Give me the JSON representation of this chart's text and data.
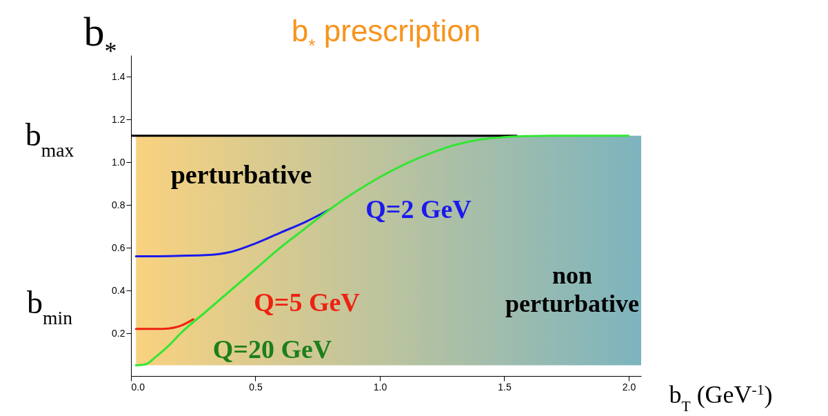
{
  "chart_data": {
    "type": "line",
    "title": "b$_{*}$ prescription",
    "xlabel": "b$_{T}$ (GeV$^{-1}$)",
    "ylabel": "b$_{*}$",
    "xlim": [
      0,
      2.05
    ],
    "ylim": [
      0,
      1.5
    ],
    "xticks": [
      {
        "value": 0,
        "label": "0.0"
      },
      0.5,
      {
        "value": 1,
        "label": "1.0"
      },
      1.5,
      {
        "value": 2,
        "label": "2.0"
      }
    ],
    "yticks": [
      0.2,
      0.4,
      0.6,
      0.8,
      {
        "value": 1,
        "label": "1.0"
      },
      1.2,
      1.4
    ],
    "grid": false,
    "legend": false,
    "bands": [
      {
        "axis": "x",
        "from": 0.02,
        "to": 2.05,
        "color": "#f9d27f"
      }
    ],
    "series": [
      {
        "color": "#000000",
        "x": [
          0,
          1.55
        ],
        "values": [
          1.123,
          1.123
        ]
      },
      {
        "color": "#1a1aee",
        "x": [
          0.02,
          0.1,
          0.2,
          0.3,
          0.4,
          0.5,
          0.6,
          0.7,
          0.8
        ],
        "values": [
          0.56,
          0.56,
          0.562,
          0.565,
          0.58,
          0.62,
          0.67,
          0.72,
          0.78
        ]
      },
      {
        "color": "#ee2211",
        "x": [
          0.02,
          0.1,
          0.15,
          0.2,
          0.25
        ],
        "values": [
          0.22,
          0.22,
          0.222,
          0.235,
          0.265
        ]
      },
      {
        "color": "#33e633",
        "x": [
          0.02,
          0.06,
          0.1,
          0.15,
          0.2,
          0.3,
          0.4,
          0.5,
          0.6,
          0.7,
          0.8,
          0.9,
          1.0,
          1.1,
          1.2,
          1.3,
          1.4,
          1.5,
          1.6,
          1.7,
          1.8,
          1.9,
          2.0
        ],
        "values": [
          0.05,
          0.055,
          0.09,
          0.14,
          0.2,
          0.3,
          0.4,
          0.5,
          0.6,
          0.69,
          0.78,
          0.86,
          0.93,
          0.99,
          1.04,
          1.08,
          1.105,
          1.117,
          1.122,
          1.123,
          1.123,
          1.123,
          1.123
        ]
      }
    ],
    "annotations": [
      "b$_{max}$",
      "Q=2 GeV",
      "Q=5 GeV",
      "Q=20 GeV",
      "b$_{min}$",
      "perturbative",
      "non\nperturbative"
    ]
  }
}
